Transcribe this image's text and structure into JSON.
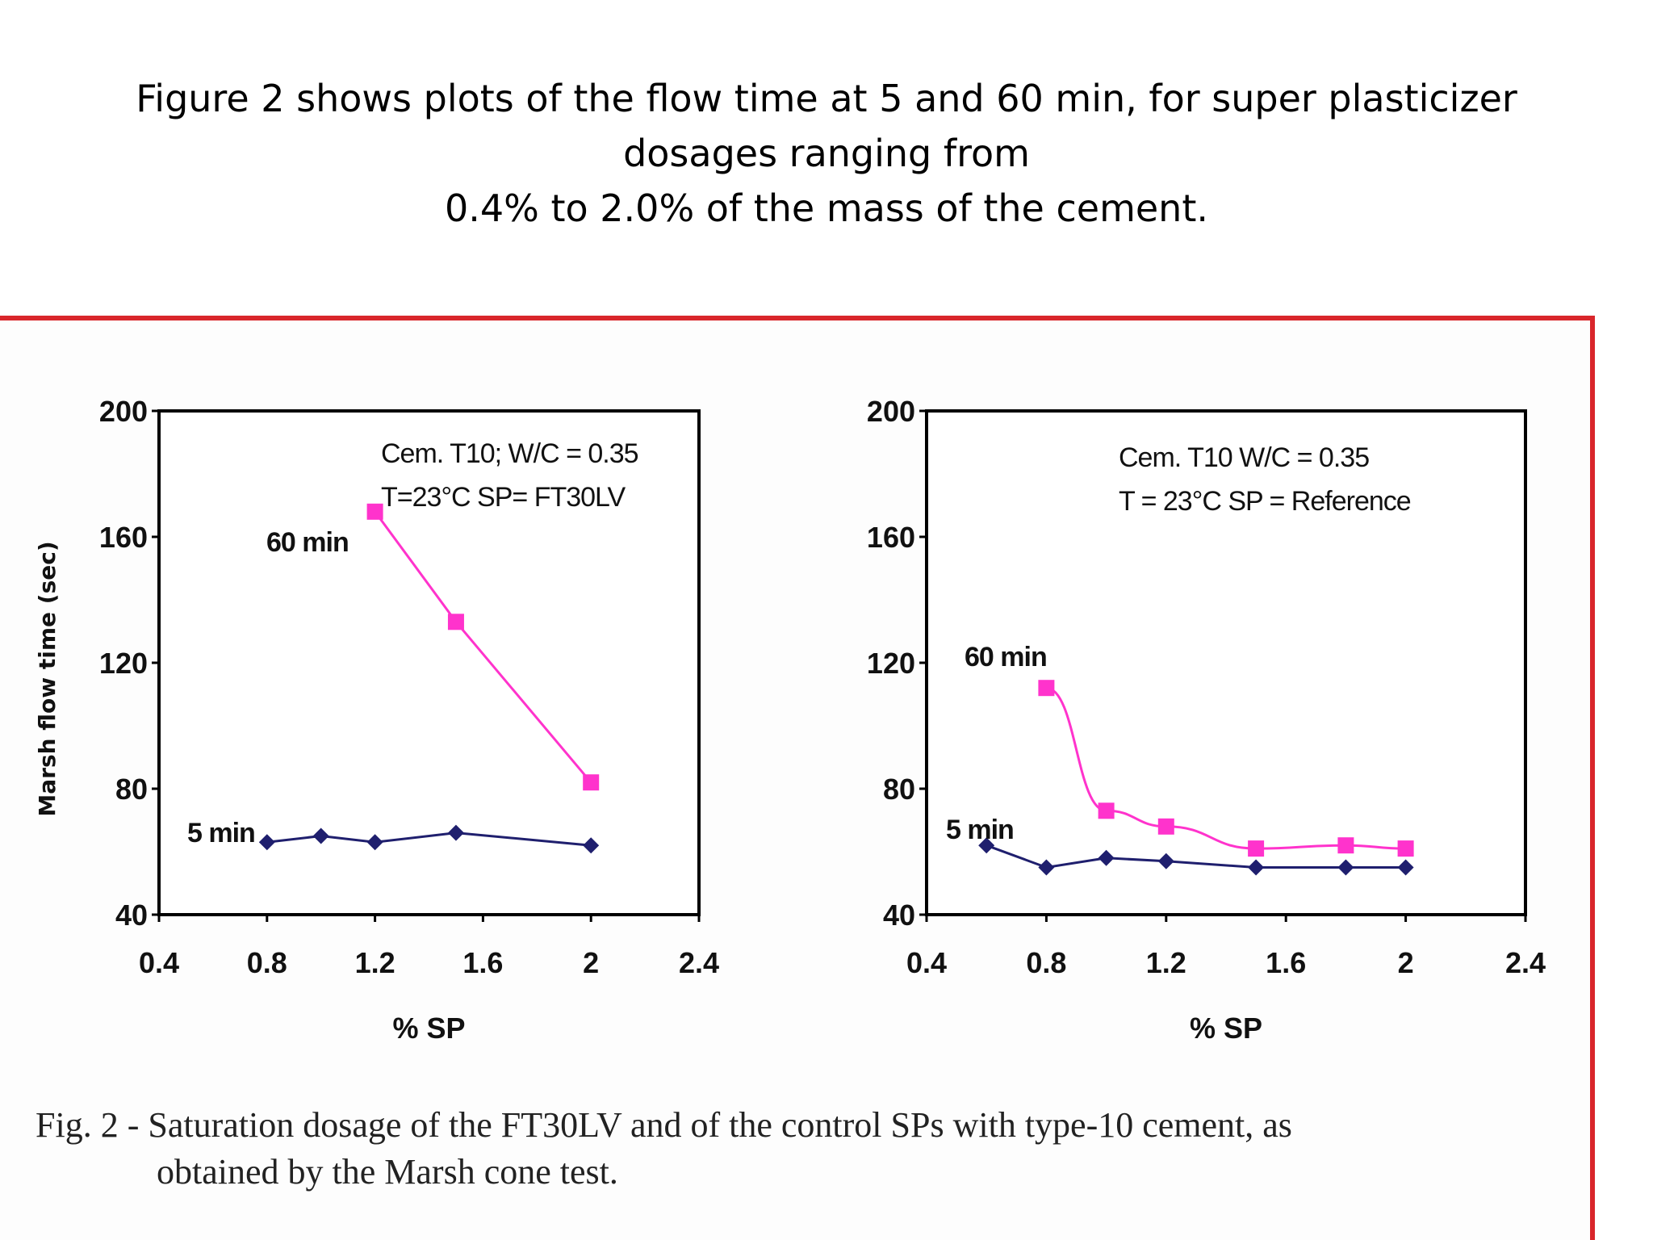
{
  "slide": {
    "title_lines": [
      "Figure 2 shows plots of the flow time at 5 and 60 min, for super plasticizer",
      "dosages ranging from",
      "0.4% to 2.0% of the mass of the cement."
    ]
  },
  "figure": {
    "frame_color": "#d9262b",
    "y_axis_label": "Marsh flow time (sec)",
    "caption_lines": [
      "Fig. 2 - Saturation dosage of the FT30LV and of the control SPs with type-10 cement, as",
      "obtained by the Marsh cone test."
    ]
  },
  "chart_data": [
    {
      "type": "line",
      "title": "",
      "xlabel": "% SP",
      "ylabel": "Marsh flow time (sec)",
      "xlim": [
        0.4,
        2.4
      ],
      "ylim": [
        40,
        200
      ],
      "x_ticks": [
        "0.4",
        "0.8",
        "1.2",
        "1.6",
        "2",
        "2.4"
      ],
      "y_ticks": [
        "40",
        "80",
        "120",
        "160",
        "200"
      ],
      "annotation_lines": [
        "Cem. T10; W/C = 0.35",
        "T=23°C  SP= FT30LV"
      ],
      "grid": false,
      "series": [
        {
          "name": "5 min",
          "color": "#1f1f6e",
          "marker": "diamond",
          "x": [
            0.8,
            1.0,
            1.2,
            1.5,
            2.0
          ],
          "y": [
            63,
            65,
            63,
            66,
            62
          ]
        },
        {
          "name": "60 min",
          "color": "#ff33cc",
          "marker": "square",
          "x": [
            1.2,
            1.5,
            2.0
          ],
          "y": [
            168,
            133,
            82
          ]
        }
      ]
    },
    {
      "type": "line",
      "title": "",
      "xlabel": "% SP",
      "ylabel": "",
      "xlim": [
        0.4,
        2.4
      ],
      "ylim": [
        40,
        200
      ],
      "x_ticks": [
        "0.4",
        "0.8",
        "1.2",
        "1.6",
        "2",
        "2.4"
      ],
      "y_ticks": [
        "40",
        "80",
        "120",
        "160",
        "200"
      ],
      "annotation_lines": [
        "Cem. T10 W/C = 0.35",
        "T = 23°C  SP = Reference"
      ],
      "grid": false,
      "series": [
        {
          "name": "5 min",
          "color": "#1f1f6e",
          "marker": "diamond",
          "x": [
            0.6,
            0.8,
            1.0,
            1.2,
            1.5,
            1.8,
            2.0
          ],
          "y": [
            62,
            55,
            58,
            57,
            55,
            55,
            55
          ]
        },
        {
          "name": "60 min",
          "color": "#ff33cc",
          "marker": "square",
          "x": [
            0.8,
            1.0,
            1.2,
            1.5,
            1.8,
            2.0
          ],
          "y": [
            112,
            73,
            68,
            61,
            62,
            61
          ]
        }
      ]
    }
  ]
}
